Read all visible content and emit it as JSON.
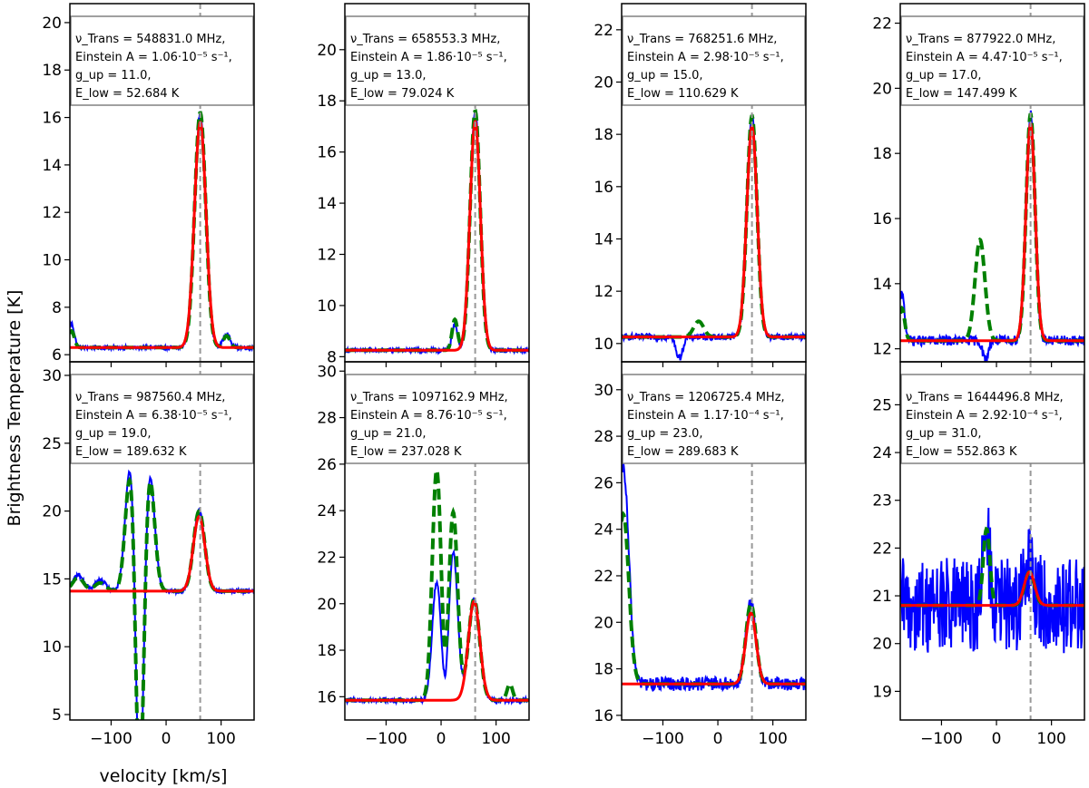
{
  "figure": {
    "ylabel": "Brightness Temperature [K]",
    "xlabel": "velocity [km/s]",
    "colors": {
      "obs": "#0000ff",
      "model": "#008000",
      "fit": "#ff0000",
      "vline": "#999999",
      "box": "#808080"
    }
  },
  "chart_data": [
    {
      "type": "line",
      "ylim": [
        5.7,
        20.8
      ],
      "xlim": [
        -175,
        160
      ],
      "vline_x": 62,
      "yticks": [
        "6",
        "8",
        "10",
        "12",
        "14",
        "16",
        "18",
        "20"
      ],
      "ytick_values": [
        6,
        8,
        10,
        12,
        14,
        16,
        18,
        20
      ],
      "xticks": [],
      "xtick_values": [],
      "annotation": [
        "ν_Trans = 548831.0 MHz,",
        "Einstein A = 1.06·10⁻⁵ s⁻¹,",
        "g_up = 11.0,",
        "E_low = 52.684 K"
      ],
      "baseline": 6.3,
      "peak": 16.2,
      "fit_peak": 15.8,
      "center": 62,
      "width": 10,
      "extra_obs": [
        {
          "center": -172,
          "height": 1.0,
          "width": 5
        },
        {
          "center": 110,
          "height": 0.6,
          "width": 6
        }
      ],
      "extra_model": [
        {
          "center": -172,
          "height": 0.7,
          "width": 5
        },
        {
          "center": 110,
          "height": 0.5,
          "width": 6
        }
      ],
      "noise": 0.08
    },
    {
      "type": "line",
      "ylim": [
        7.8,
        21.8
      ],
      "xlim": [
        -175,
        160
      ],
      "vline_x": 62,
      "yticks": [
        "8",
        "10",
        "12",
        "14",
        "16",
        "18",
        "20"
      ],
      "ytick_values": [
        8,
        10,
        12,
        14,
        16,
        18,
        20
      ],
      "xticks": [],
      "xtick_values": [],
      "annotation": [
        "ν_Trans = 658553.3 MHz,",
        "Einstein A = 1.86·10⁻⁵ s⁻¹,",
        "g_up = 13.0,",
        "E_low = 79.024 K"
      ],
      "baseline": 8.25,
      "peak": 17.6,
      "fit_peak": 17.2,
      "center": 62,
      "width": 9,
      "extra_obs": [
        {
          "center": 25,
          "height": 1.0,
          "width": 5
        }
      ],
      "extra_model": [
        {
          "center": 25,
          "height": 1.2,
          "width": 5
        }
      ],
      "noise": 0.08
    },
    {
      "type": "line",
      "ylim": [
        9.3,
        23.0
      ],
      "xlim": [
        -175,
        160
      ],
      "vline_x": 62,
      "yticks": [
        "10",
        "12",
        "14",
        "16",
        "18",
        "20",
        "22"
      ],
      "ytick_values": [
        10,
        12,
        14,
        16,
        18,
        20,
        22
      ],
      "xticks": [],
      "xtick_values": [],
      "annotation": [
        "ν_Trans = 768251.6 MHz,",
        "Einstein A = 2.98·10⁻⁵ s⁻¹,",
        "g_up = 15.0,",
        "E_low = 110.629 K"
      ],
      "baseline": 10.25,
      "peak": 18.7,
      "fit_peak": 18.3,
      "center": 62,
      "width": 9,
      "extra_obs": [
        {
          "center": -70,
          "height": -0.8,
          "width": 6
        }
      ],
      "extra_model": [
        {
          "center": -35,
          "height": 0.6,
          "width": 9
        }
      ],
      "noise": 0.12
    },
    {
      "type": "line",
      "ylim": [
        11.6,
        22.6
      ],
      "xlim": [
        -175,
        160
      ],
      "vline_x": 62,
      "yticks": [
        "12",
        "14",
        "16",
        "18",
        "20",
        "22"
      ],
      "ytick_values": [
        12,
        14,
        16,
        18,
        20,
        22
      ],
      "xticks": [],
      "xtick_values": [],
      "annotation": [
        "ν_Trans = 877922.0 MHz,",
        "Einstein A = 4.47·10⁻⁵ s⁻¹,",
        "g_up = 17.0,",
        "E_low = 147.499 K"
      ],
      "baseline": 12.25,
      "peak": 19.2,
      "fit_peak": 18.9,
      "center": 62,
      "width": 8,
      "extra_obs": [
        {
          "center": -172,
          "height": 1.4,
          "width": 5
        },
        {
          "center": -20,
          "height": -0.6,
          "width": 5
        }
      ],
      "extra_model": [
        {
          "center": -172,
          "height": 1.0,
          "width": 5
        },
        {
          "center": -30,
          "height": 3.1,
          "width": 9
        }
      ],
      "noise": 0.15
    },
    {
      "type": "line",
      "ylim": [
        4.6,
        31.0
      ],
      "xlim": [
        -175,
        160
      ],
      "vline_x": 62,
      "yticks": [
        "5",
        "10",
        "15",
        "20",
        "25",
        "30"
      ],
      "ytick_values": [
        5,
        10,
        15,
        20,
        25,
        30
      ],
      "xticks": [
        "−100",
        "0",
        "100"
      ],
      "xtick_values": [
        -100,
        0,
        100
      ],
      "annotation": [
        "ν_Trans = 987560.4 MHz,",
        "Einstein A = 6.38·10⁻⁵ s⁻¹,",
        "g_up = 19.0,",
        "E_low = 189.632 K"
      ],
      "baseline": 14.1,
      "peak": 20.0,
      "fit_peak": 19.6,
      "center": 60,
      "width": 10,
      "extra_obs": [
        {
          "center": -160,
          "height": 1.2,
          "width": 10
        },
        {
          "center": -120,
          "height": 0.8,
          "width": 10
        },
        {
          "center": -65,
          "height": 9.5,
          "width": 9
        },
        {
          "center": -48,
          "height": -17.0,
          "width": 7
        },
        {
          "center": -30,
          "height": 8.8,
          "width": 9
        }
      ],
      "extra_model": [
        {
          "center": -160,
          "height": 1.0,
          "width": 10
        },
        {
          "center": -120,
          "height": 0.6,
          "width": 10
        },
        {
          "center": -65,
          "height": 8.8,
          "width": 9
        },
        {
          "center": -48,
          "height": -17.0,
          "width": 7
        },
        {
          "center": -30,
          "height": 8.5,
          "width": 9
        }
      ],
      "noise": 0.15
    },
    {
      "type": "line",
      "ylim": [
        15.0,
        30.4
      ],
      "xlim": [
        -175,
        160
      ],
      "vline_x": 62,
      "yticks": [
        "16",
        "18",
        "20",
        "22",
        "24",
        "26",
        "28",
        "30"
      ],
      "ytick_values": [
        16,
        18,
        20,
        22,
        24,
        26,
        28,
        30
      ],
      "xticks": [
        "−100",
        "0",
        "100"
      ],
      "xtick_values": [
        -100,
        0,
        100
      ],
      "annotation": [
        "ν_Trans = 1097162.9 MHz,",
        "Einstein A = 8.76·10⁻⁵ s⁻¹,",
        "g_up = 21.0,",
        "E_low = 237.028 K"
      ],
      "baseline": 15.85,
      "peak": 20.2,
      "fit_peak": 20.1,
      "center": 60,
      "width": 10,
      "extra_obs": [
        {
          "center": -8,
          "height": 5.1,
          "width": 8
        },
        {
          "center": 8,
          "height": -0.9,
          "width": 5
        },
        {
          "center": 22,
          "height": 6.4,
          "width": 8
        }
      ],
      "extra_model": [
        {
          "center": -8,
          "height": 9.9,
          "width": 8
        },
        {
          "center": 8,
          "height": -0.9,
          "width": 5
        },
        {
          "center": 22,
          "height": 8.1,
          "width": 8
        },
        {
          "center": 125,
          "height": 0.7,
          "width": 5
        }
      ],
      "noise": 0.1
    },
    {
      "type": "line",
      "ylim": [
        15.8,
        31.2
      ],
      "xlim": [
        -175,
        160
      ],
      "vline_x": 62,
      "yticks": [
        "16",
        "18",
        "20",
        "22",
        "24",
        "26",
        "28",
        "30"
      ],
      "ytick_values": [
        16,
        18,
        20,
        22,
        24,
        26,
        28,
        30
      ],
      "xticks": [
        "−100",
        "0",
        "100"
      ],
      "xtick_values": [
        -100,
        0,
        100
      ],
      "annotation": [
        "ν_Trans = 1206725.4 MHz,",
        "Einstein A = 1.17·10⁻⁴ s⁻¹,",
        "g_up = 23.0,",
        "E_low = 289.683 K"
      ],
      "baseline": 17.35,
      "peak": 20.8,
      "fit_peak": 20.4,
      "center": 60,
      "width": 9,
      "extra_obs": [
        {
          "center": -172,
          "height": 9.3,
          "width": 10
        }
      ],
      "extra_model": [
        {
          "center": -172,
          "height": 7.3,
          "width": 10
        }
      ],
      "noise": 0.3
    },
    {
      "type": "line",
      "ylim": [
        18.4,
        25.9
      ],
      "xlim": [
        -175,
        160
      ],
      "vline_x": 62,
      "yticks": [
        "19",
        "20",
        "21",
        "22",
        "23",
        "24",
        "25"
      ],
      "ytick_values": [
        19,
        20,
        21,
        22,
        23,
        24,
        25
      ],
      "xticks": [
        "−100",
        "0",
        "100"
      ],
      "xtick_values": [
        -100,
        0,
        100
      ],
      "annotation": [
        "ν_Trans = 1644496.8 MHz,",
        "Einstein A = 2.92·10⁻⁴ s⁻¹,",
        "g_up = 31.0,",
        "E_low = 552.863 K"
      ],
      "baseline": 20.8,
      "peak": 21.5,
      "fit_peak": 21.5,
      "center": 60,
      "width": 9,
      "extra_obs": [
        {
          "center": -18,
          "height": 1.4,
          "width": 6
        }
      ],
      "extra_model": [
        {
          "center": -18,
          "height": 1.6,
          "width": 6
        }
      ],
      "noise": 1.0
    }
  ]
}
